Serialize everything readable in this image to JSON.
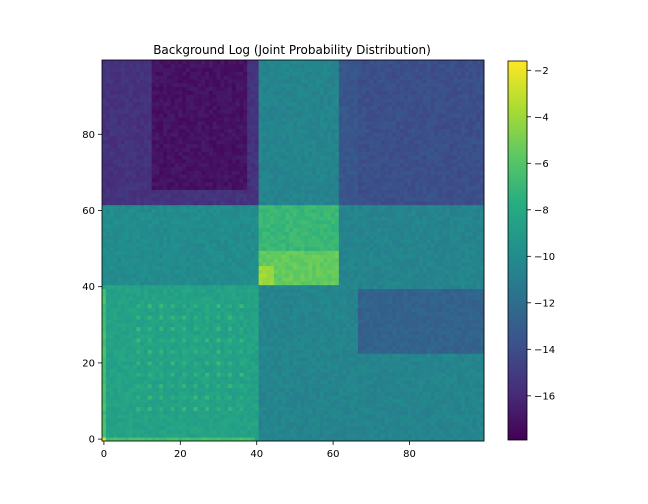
{
  "chart_data": {
    "type": "heatmap",
    "title": "Background Log (Joint Probability Distribution)",
    "xlabel": "",
    "ylabel": "",
    "grid": false,
    "x_range": [
      0,
      99
    ],
    "y_range": [
      0,
      99
    ],
    "x_ticks": [
      "0",
      "20",
      "40",
      "60",
      "80"
    ],
    "x_tick_values": [
      0,
      20,
      40,
      60,
      80
    ],
    "y_ticks": [
      "0",
      "20",
      "40",
      "60",
      "80"
    ],
    "y_tick_values": [
      0,
      20,
      40,
      60,
      80
    ],
    "colormap": "viridis",
    "color_range": [
      -17.9,
      -1.6
    ],
    "colorbar_ticks": [
      "−2",
      "−4",
      "−6",
      "−8",
      "−10",
      "−12",
      "−14",
      "−16"
    ],
    "colorbar_tick_values": [
      -2,
      -4,
      -6,
      -8,
      -10,
      -12,
      -14,
      -16
    ],
    "block_boundaries": [
      0,
      41,
      62,
      100
    ],
    "block_log_values": [
      [
        -8.5,
        -10.5,
        -10.5
      ],
      [
        -10.0,
        -7.0,
        -10.5
      ],
      [
        -15.5,
        -10.5,
        -13.5
      ]
    ],
    "block_matrix_note": "rows: y-blocks bottom→top, cols: x-blocks left→right (values estimated from colormap)"
  }
}
